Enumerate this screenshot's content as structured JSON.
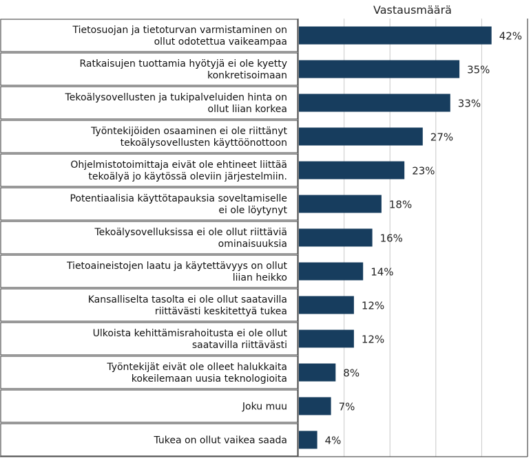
{
  "chart_data": {
    "type": "bar",
    "orientation": "horizontal",
    "title": "Vastausmäärä",
    "xlim": [
      0,
      50
    ],
    "grid": true,
    "value_suffix": "%",
    "bar_color": "#173d5e",
    "categories": [
      [
        "Tietosuojan ja tietoturvan varmistaminen on",
        "ollut odotettua vaikeampaa"
      ],
      [
        "Ratkaisujen tuottamia hyötyjä ei ole kyetty",
        "konkretisoimaan"
      ],
      [
        "Tekoälysovellusten ja tukipalveluiden hinta on",
        "ollut liian korkea"
      ],
      [
        "Työntekijöiden osaaminen ei ole riittänyt",
        "tekoälysovellusten käyttöönottoon"
      ],
      [
        "Ohjelmistotoimittaja eivät ole ehtineet liittää",
        "tekoälyä jo käytössä oleviin järjestelmiin."
      ],
      [
        "Potentiaalisia käyttötapauksia soveltamiselle",
        "ei ole löytynyt"
      ],
      [
        "Tekoälysovelluksissa ei ole ollut riittäviä",
        "ominaisuuksia"
      ],
      [
        "Tietoaineistojen laatu ja käytettävyys on ollut",
        "liian heikko"
      ],
      [
        "Kansalliselta tasolta ei ole ollut saatavilla",
        "riittävästi keskitettyä tukea"
      ],
      [
        "Ulkoista kehittämisrahoitusta ei ole ollut",
        "saatavilla riittävästi"
      ],
      [
        "Työntekijät eivät ole olleet halukkaita",
        "kokeilemaan uusia teknologioita"
      ],
      [
        "Joku muu"
      ],
      [
        "Tukea on ollut vaikea saada"
      ]
    ],
    "values": [
      42,
      35,
      33,
      27,
      23,
      18,
      16,
      14,
      12,
      12,
      8,
      7,
      4
    ],
    "value_labels": [
      "42%",
      "35%",
      "33%",
      "27%",
      "23%",
      "18%",
      "16%",
      "14%",
      "12%",
      "12%",
      "8%",
      "7%",
      "4%"
    ]
  }
}
